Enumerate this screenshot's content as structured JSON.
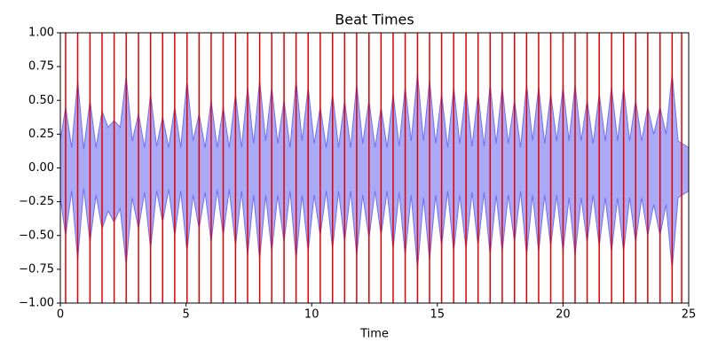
{
  "chart_data": {
    "type": "waveform",
    "title": "Beat Times",
    "x_label": "Time",
    "x": [
      0,
      0.21,
      0.45,
      0.69,
      0.93,
      1.18,
      1.42,
      1.66,
      1.9,
      2.14,
      2.38,
      2.62,
      2.86,
      3.11,
      3.35,
      3.59,
      3.83,
      4.07,
      4.31,
      4.55,
      4.79,
      5.04,
      5.28,
      5.52,
      5.76,
      6.0,
      6.24,
      6.48,
      6.72,
      6.97,
      7.21,
      7.45,
      7.69,
      7.93,
      8.17,
      8.41,
      8.65,
      8.9,
      9.14,
      9.38,
      9.62,
      9.86,
      10.1,
      10.34,
      10.58,
      10.83,
      11.07,
      11.31,
      11.55,
      11.79,
      12.03,
      12.28,
      12.52,
      12.76,
      13.0,
      13.24,
      13.48,
      13.72,
      13.96,
      14.21,
      14.45,
      14.69,
      14.93,
      15.17,
      15.41,
      15.65,
      15.89,
      16.14,
      16.38,
      16.62,
      16.86,
      17.1,
      17.34,
      17.58,
      17.82,
      18.07,
      18.31,
      18.55,
      18.79,
      19.03,
      19.27,
      19.51,
      19.75,
      20.0,
      20.24,
      20.48,
      20.72,
      20.96,
      21.2,
      21.44,
      21.68,
      21.93,
      22.17,
      22.41,
      22.65,
      22.89,
      23.13,
      23.37,
      23.61,
      23.86,
      24.1,
      24.34,
      24.58,
      25
    ],
    "series": [
      {
        "color": "#7070f0",
        "values": [
          0.2,
          0.45,
          0.15,
          0.65,
          0.14,
          0.5,
          0.15,
          0.42,
          0.3,
          0.35,
          0.3,
          0.68,
          0.2,
          0.4,
          0.15,
          0.55,
          0.16,
          0.38,
          0.15,
          0.45,
          0.15,
          0.65,
          0.2,
          0.4,
          0.15,
          0.5,
          0.15,
          0.45,
          0.15,
          0.55,
          0.15,
          0.6,
          0.18,
          0.65,
          0.2,
          0.6,
          0.18,
          0.5,
          0.15,
          0.65,
          0.2,
          0.6,
          0.18,
          0.45,
          0.15,
          0.55,
          0.15,
          0.5,
          0.15,
          0.62,
          0.18,
          0.5,
          0.15,
          0.45,
          0.15,
          0.55,
          0.16,
          0.6,
          0.2,
          0.7,
          0.2,
          0.65,
          0.18,
          0.55,
          0.15,
          0.6,
          0.18,
          0.58,
          0.16,
          0.55,
          0.16,
          0.62,
          0.18,
          0.6,
          0.18,
          0.5,
          0.15,
          0.62,
          0.2,
          0.6,
          0.18,
          0.55,
          0.2,
          0.6,
          0.2,
          0.62,
          0.2,
          0.5,
          0.18,
          0.55,
          0.2,
          0.6,
          0.2,
          0.6,
          0.2,
          0.5,
          0.2,
          0.45,
          0.25,
          0.45,
          0.25,
          0.7,
          0.2,
          0.15
        ]
      },
      {
        "color": "#7070f0",
        "values": [
          -0.22,
          -0.5,
          -0.17,
          -0.68,
          -0.15,
          -0.55,
          -0.2,
          -0.45,
          -0.32,
          -0.4,
          -0.3,
          -0.72,
          -0.22,
          -0.45,
          -0.18,
          -0.6,
          -0.17,
          -0.4,
          -0.16,
          -0.5,
          -0.17,
          -0.62,
          -0.2,
          -0.45,
          -0.18,
          -0.55,
          -0.16,
          -0.5,
          -0.16,
          -0.58,
          -0.17,
          -0.65,
          -0.2,
          -0.68,
          -0.2,
          -0.62,
          -0.2,
          -0.55,
          -0.17,
          -0.68,
          -0.2,
          -0.62,
          -0.2,
          -0.5,
          -0.17,
          -0.6,
          -0.17,
          -0.55,
          -0.17,
          -0.65,
          -0.2,
          -0.52,
          -0.17,
          -0.5,
          -0.17,
          -0.6,
          -0.18,
          -0.65,
          -0.2,
          -0.75,
          -0.22,
          -0.68,
          -0.2,
          -0.58,
          -0.17,
          -0.62,
          -0.2,
          -0.6,
          -0.18,
          -0.58,
          -0.18,
          -0.65,
          -0.2,
          -0.62,
          -0.2,
          -0.55,
          -0.17,
          -0.65,
          -0.2,
          -0.62,
          -0.2,
          -0.58,
          -0.2,
          -0.62,
          -0.22,
          -0.65,
          -0.22,
          -0.55,
          -0.2,
          -0.58,
          -0.22,
          -0.62,
          -0.22,
          -0.62,
          -0.22,
          -0.55,
          -0.22,
          -0.5,
          -0.27,
          -0.5,
          -0.27,
          -0.75,
          -0.22,
          -0.17
        ]
      }
    ],
    "beat_times": [
      0.21,
      0.69,
      1.18,
      1.66,
      2.14,
      2.62,
      3.11,
      3.59,
      4.07,
      4.55,
      5.04,
      5.52,
      6.0,
      6.48,
      6.97,
      7.45,
      7.93,
      8.41,
      8.9,
      9.38,
      9.86,
      10.34,
      10.83,
      11.31,
      11.79,
      12.28,
      12.76,
      13.24,
      13.72,
      14.21,
      14.69,
      15.17,
      15.65,
      16.14,
      16.62,
      17.1,
      17.58,
      18.07,
      18.55,
      19.03,
      19.51,
      20.0,
      20.48,
      20.96,
      21.44,
      21.93,
      22.41,
      22.89,
      23.37,
      23.86,
      24.34,
      24.72
    ],
    "beat_color": "#e00000",
    "xlim": [
      0,
      25
    ],
    "xticks": [
      0,
      5,
      10,
      15,
      20,
      25
    ],
    "ylim": [
      -1,
      1
    ],
    "yticks": [
      {
        "value": -1,
        "label": "−1.00"
      },
      {
        "value": -0.75,
        "label": "−0.75"
      },
      {
        "value": -0.5,
        "label": "−0.50"
      },
      {
        "value": -0.25,
        "label": "−0.25"
      },
      {
        "value": 0,
        "label": "0.00"
      },
      {
        "value": 0.25,
        "label": "0.25"
      },
      {
        "value": 0.5,
        "label": "0.50"
      },
      {
        "value": 0.75,
        "label": "0.75"
      },
      {
        "value": 1,
        "label": "1.00"
      }
    ]
  }
}
